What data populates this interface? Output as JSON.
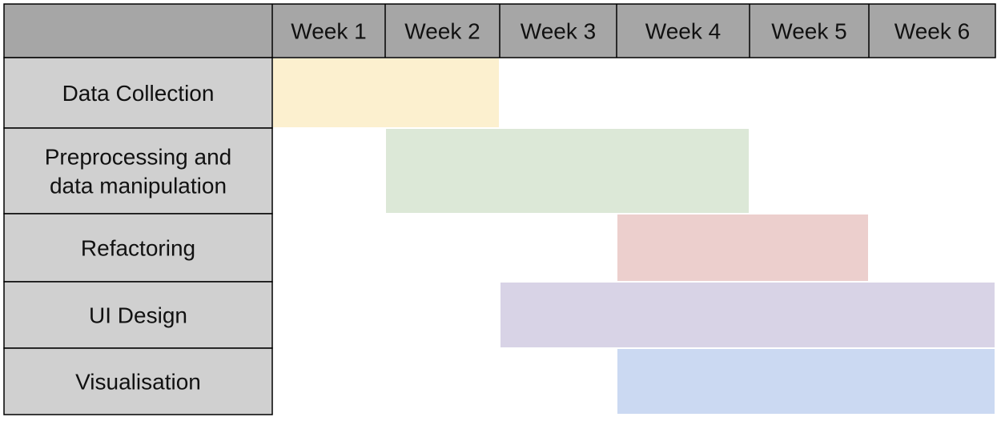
{
  "chart_data": {
    "type": "gantt",
    "title": "",
    "weeks": [
      "Week 1",
      "Week 2",
      "Week 3",
      "Week 4",
      "Week 5",
      "Week 6"
    ],
    "tasks": [
      {
        "name": [
          "Data Collection"
        ],
        "start": 1,
        "end": 2,
        "color": "#fcf0cf"
      },
      {
        "name": [
          "Preprocessing and",
          "data manipulation"
        ],
        "start": 2,
        "end": 4,
        "color": "#dce8d7"
      },
      {
        "name": [
          "Refactoring"
        ],
        "start": 4,
        "end": 5,
        "color": "#eccfcd"
      },
      {
        "name": [
          "UI Design"
        ],
        "start": 3,
        "end": 6,
        "color": "#d8d3e6"
      },
      {
        "name": [
          "Visualisation"
        ],
        "start": 4,
        "end": 6,
        "color": "#cbd9f2"
      }
    ],
    "colors": {
      "header_background": "#a6a6a6",
      "label_background": "#d0d0d0",
      "grid_line": "#000000"
    }
  }
}
